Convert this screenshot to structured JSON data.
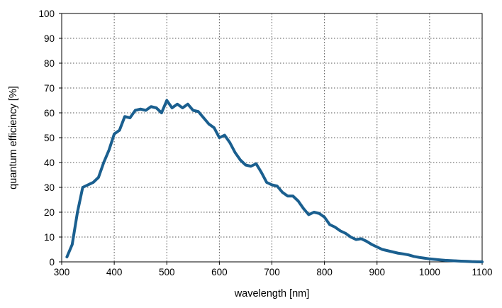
{
  "chart_data": {
    "type": "line",
    "title": "",
    "xlabel": "wavelength [nm]",
    "ylabel": "quantum efficiency [%]",
    "xlim": [
      300,
      1100
    ],
    "ylim": [
      0,
      100
    ],
    "x_ticks": [
      300,
      400,
      500,
      600,
      700,
      800,
      900,
      1000,
      1100
    ],
    "y_ticks": [
      0,
      10,
      20,
      30,
      40,
      50,
      60,
      70,
      80,
      90,
      100
    ],
    "grid": true,
    "grid_style": "dotted",
    "legend": "none",
    "series": [
      {
        "color": "#1a5f8f",
        "x": [
          310,
          320,
          330,
          340,
          350,
          360,
          370,
          380,
          390,
          400,
          410,
          420,
          430,
          440,
          450,
          460,
          470,
          480,
          490,
          500,
          510,
          520,
          530,
          540,
          550,
          560,
          570,
          580,
          590,
          600,
          610,
          620,
          630,
          640,
          650,
          660,
          670,
          680,
          690,
          700,
          710,
          720,
          730,
          740,
          750,
          760,
          770,
          780,
          790,
          800,
          810,
          820,
          830,
          840,
          850,
          860,
          870,
          880,
          890,
          900,
          910,
          920,
          930,
          940,
          950,
          960,
          970,
          980,
          990,
          1000,
          1010,
          1020,
          1030,
          1040,
          1050,
          1060,
          1070,
          1080,
          1090,
          1100
        ],
        "y": [
          2,
          7,
          20,
          30,
          31,
          32,
          34,
          40,
          45,
          51.5,
          53,
          58.5,
          58,
          61,
          61.5,
          61,
          62.5,
          62,
          60,
          65,
          62,
          63.5,
          62,
          63.5,
          61,
          60.5,
          58,
          55.5,
          54,
          50,
          51,
          48,
          44,
          41,
          39,
          38.5,
          39.5,
          36,
          32,
          31,
          30.5,
          28,
          26.5,
          26.5,
          24.5,
          21.5,
          19,
          20,
          19.5,
          18,
          15,
          14,
          12.5,
          11.5,
          10,
          9,
          9.3,
          8.3,
          7,
          6,
          5,
          4.5,
          4,
          3.5,
          3.2,
          2.8,
          2.2,
          1.8,
          1.5,
          1.2,
          1,
          0.8,
          0.6,
          0.5,
          0.4,
          0.3,
          0.2,
          0.1,
          0.05,
          0
        ]
      }
    ]
  }
}
